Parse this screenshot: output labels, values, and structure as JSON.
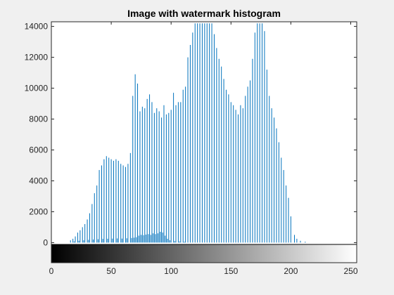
{
  "chart_data": {
    "type": "bar",
    "title": "Image with watermark histogram",
    "xlabel": "",
    "ylabel": "",
    "xlim": [
      0,
      255
    ],
    "ylim": [
      -1300,
      14300
    ],
    "xticks": [
      0,
      50,
      100,
      150,
      200,
      250
    ],
    "yticks": [
      0,
      2000,
      4000,
      6000,
      8000,
      10000,
      12000,
      14000
    ],
    "grid": false,
    "colorbar": "grayscale 0-255 below axis",
    "colors": {
      "bar": "#0072bd",
      "axis": "#262626",
      "background": "#ffffff",
      "figure": "#f0f0f0"
    },
    "bins": [
      {
        "x": 16,
        "y": 150
      },
      {
        "x": 18,
        "y": 250
      },
      {
        "x": 20,
        "y": 400
      },
      {
        "x": 22,
        "y": 650
      },
      {
        "x": 24,
        "y": 800
      },
      {
        "x": 26,
        "y": 1000
      },
      {
        "x": 28,
        "y": 1200
      },
      {
        "x": 30,
        "y": 1500
      },
      {
        "x": 32,
        "y": 1900
      },
      {
        "x": 34,
        "y": 2500
      },
      {
        "x": 36,
        "y": 3200
      },
      {
        "x": 38,
        "y": 3700
      },
      {
        "x": 40,
        "y": 4700
      },
      {
        "x": 42,
        "y": 5000
      },
      {
        "x": 44,
        "y": 5400
      },
      {
        "x": 46,
        "y": 5600
      },
      {
        "x": 48,
        "y": 5500
      },
      {
        "x": 50,
        "y": 5400
      },
      {
        "x": 52,
        "y": 5300
      },
      {
        "x": 54,
        "y": 5400
      },
      {
        "x": 56,
        "y": 5300
      },
      {
        "x": 58,
        "y": 5100
      },
      {
        "x": 60,
        "y": 5000
      },
      {
        "x": 62,
        "y": 4900
      },
      {
        "x": 64,
        "y": 5100
      },
      {
        "x": 66,
        "y": 5800
      },
      {
        "x": 68,
        "y": 9500
      },
      {
        "x": 70,
        "y": 10900
      },
      {
        "x": 72,
        "y": 10300
      },
      {
        "x": 74,
        "y": 8500
      },
      {
        "x": 76,
        "y": 8800
      },
      {
        "x": 78,
        "y": 8700
      },
      {
        "x": 80,
        "y": 9300
      },
      {
        "x": 82,
        "y": 9600
      },
      {
        "x": 84,
        "y": 9100
      },
      {
        "x": 86,
        "y": 8400
      },
      {
        "x": 88,
        "y": 8700
      },
      {
        "x": 90,
        "y": 8500
      },
      {
        "x": 92,
        "y": 8100
      },
      {
        "x": 94,
        "y": 8900
      },
      {
        "x": 96,
        "y": 8300
      },
      {
        "x": 98,
        "y": 8400
      },
      {
        "x": 100,
        "y": 8600
      },
      {
        "x": 102,
        "y": 9700
      },
      {
        "x": 104,
        "y": 8900
      },
      {
        "x": 106,
        "y": 9100
      },
      {
        "x": 108,
        "y": 9100
      },
      {
        "x": 110,
        "y": 9900
      },
      {
        "x": 112,
        "y": 10100
      },
      {
        "x": 114,
        "y": 12000
      },
      {
        "x": 116,
        "y": 12800
      },
      {
        "x": 118,
        "y": 13600
      },
      {
        "x": 120,
        "y": 14200
      },
      {
        "x": 122,
        "y": 14200
      },
      {
        "x": 124,
        "y": 14200
      },
      {
        "x": 126,
        "y": 14200
      },
      {
        "x": 128,
        "y": 14200
      },
      {
        "x": 130,
        "y": 14200
      },
      {
        "x": 132,
        "y": 14200
      },
      {
        "x": 134,
        "y": 14200
      },
      {
        "x": 136,
        "y": 13500
      },
      {
        "x": 138,
        "y": 12600
      },
      {
        "x": 140,
        "y": 11900
      },
      {
        "x": 142,
        "y": 11400
      },
      {
        "x": 144,
        "y": 10600
      },
      {
        "x": 146,
        "y": 9900
      },
      {
        "x": 148,
        "y": 9600
      },
      {
        "x": 150,
        "y": 9100
      },
      {
        "x": 152,
        "y": 8900
      },
      {
        "x": 154,
        "y": 8600
      },
      {
        "x": 156,
        "y": 8300
      },
      {
        "x": 158,
        "y": 8900
      },
      {
        "x": 160,
        "y": 8700
      },
      {
        "x": 162,
        "y": 9500
      },
      {
        "x": 164,
        "y": 10100
      },
      {
        "x": 166,
        "y": 10500
      },
      {
        "x": 168,
        "y": 11900
      },
      {
        "x": 170,
        "y": 13600
      },
      {
        "x": 172,
        "y": 14200
      },
      {
        "x": 174,
        "y": 14200
      },
      {
        "x": 176,
        "y": 14200
      },
      {
        "x": 178,
        "y": 13700
      },
      {
        "x": 180,
        "y": 11200
      },
      {
        "x": 182,
        "y": 9500
      },
      {
        "x": 184,
        "y": 8700
      },
      {
        "x": 186,
        "y": 8100
      },
      {
        "x": 188,
        "y": 7400
      },
      {
        "x": 190,
        "y": 6500
      },
      {
        "x": 192,
        "y": 5500
      },
      {
        "x": 194,
        "y": 4700
      },
      {
        "x": 196,
        "y": 3700
      },
      {
        "x": 198,
        "y": 2900
      },
      {
        "x": 200,
        "y": 1700
      },
      {
        "x": 203,
        "y": 500
      },
      {
        "x": 205,
        "y": 250
      },
      {
        "x": 208,
        "y": 120
      },
      {
        "x": 212,
        "y": 60
      }
    ],
    "minor_bins": [
      {
        "x": 19,
        "y": 80
      },
      {
        "x": 23,
        "y": 120
      },
      {
        "x": 27,
        "y": 150
      },
      {
        "x": 31,
        "y": 180
      },
      {
        "x": 35,
        "y": 200
      },
      {
        "x": 39,
        "y": 220
      },
      {
        "x": 43,
        "y": 240
      },
      {
        "x": 47,
        "y": 250
      },
      {
        "x": 51,
        "y": 260
      },
      {
        "x": 55,
        "y": 270
      },
      {
        "x": 59,
        "y": 260
      },
      {
        "x": 63,
        "y": 280
      },
      {
        "x": 67,
        "y": 300
      },
      {
        "x": 69,
        "y": 320
      },
      {
        "x": 71,
        "y": 350
      },
      {
        "x": 73,
        "y": 450
      },
      {
        "x": 75,
        "y": 500
      },
      {
        "x": 77,
        "y": 480
      },
      {
        "x": 79,
        "y": 520
      },
      {
        "x": 81,
        "y": 550
      },
      {
        "x": 83,
        "y": 500
      },
      {
        "x": 85,
        "y": 600
      },
      {
        "x": 87,
        "y": 550
      },
      {
        "x": 89,
        "y": 600
      },
      {
        "x": 91,
        "y": 700
      },
      {
        "x": 93,
        "y": 650
      },
      {
        "x": 95,
        "y": 450
      },
      {
        "x": 97,
        "y": 250
      },
      {
        "x": 99,
        "y": 150
      },
      {
        "x": 103,
        "y": 100
      },
      {
        "x": 107,
        "y": 80
      },
      {
        "x": 111,
        "y": 60
      }
    ]
  }
}
